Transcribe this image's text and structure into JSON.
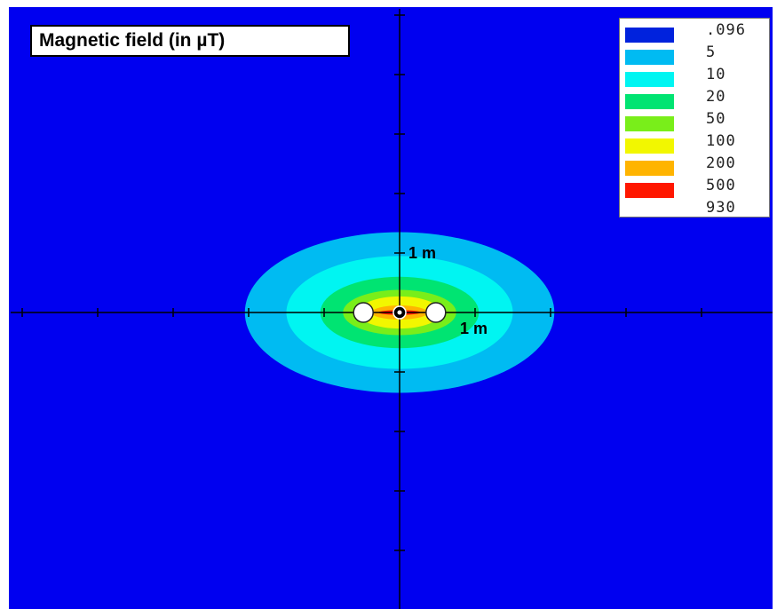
{
  "title": "Magnetic field (in µT)",
  "legend": [
    {
      "label": ".096",
      "color": "#0022dd"
    },
    {
      "label": "5",
      "color": "#00bbf2"
    },
    {
      "label": "10",
      "color": "#00f5f2"
    },
    {
      "label": "20",
      "color": "#00e472"
    },
    {
      "label": "50",
      "color": "#79ee1a"
    },
    {
      "label": "100",
      "color": "#f2f700"
    },
    {
      "label": "200",
      "color": "#ffb400"
    },
    {
      "label": "500",
      "color": "#ff1700"
    },
    {
      "label": "930",
      "color": "#ff1700"
    }
  ],
  "contours": [
    {
      "level": ".096",
      "color": "#0000f0",
      "rx_m": 3.0,
      "ry_m": 1.9
    },
    {
      "level": "5",
      "color": "#00bbf2",
      "rx_m": 2.05,
      "ry_m": 1.35
    },
    {
      "level": "10",
      "color": "#00f5f2",
      "rx_m": 1.5,
      "ry_m": 0.95
    },
    {
      "level": "20",
      "color": "#00e472",
      "rx_m": 1.05,
      "ry_m": 0.6
    },
    {
      "level": "50",
      "color": "#79ee1a",
      "rx_m": 0.75,
      "ry_m": 0.38
    },
    {
      "level": "100",
      "color": "#f2f700",
      "rx_m": 0.55,
      "ry_m": 0.27
    },
    {
      "level": "200",
      "color": "#ffb400",
      "rx_m": 0.37,
      "ry_m": 0.12
    },
    {
      "level": "500",
      "color": "#ff1700",
      "rx_m": 0.28,
      "ry_m": 0.04
    }
  ],
  "background_color": "#0000f0",
  "axis_labels": {
    "y": "1 m",
    "x": "1 m"
  },
  "conductors_x_m": [
    -0.48,
    0.0,
    0.48
  ]
}
